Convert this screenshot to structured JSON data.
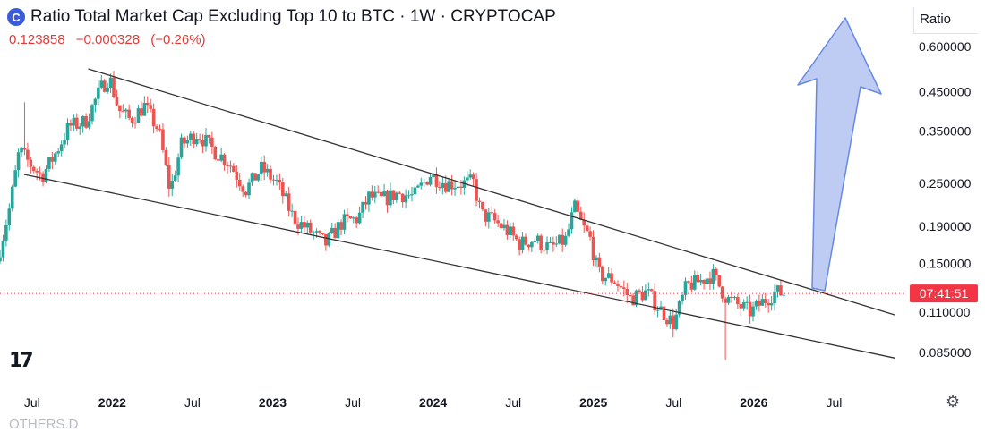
{
  "header": {
    "logo_text": "C",
    "title": "Ratio Total Market Cap Excluding Top 10 to BTC · 1W · CRYPTOCAP",
    "last_value": "0.123858",
    "change": "−0.000328",
    "change_pct": "(−0.26%)"
  },
  "scale_label": "Ratio",
  "footer_text": "OTHERS.D",
  "colors": {
    "up": "#26a69a",
    "down": "#ef5350",
    "arrow_fill": "#b9c8f3",
    "arrow_stroke": "#5b7fe0",
    "price_tag": "#f23645",
    "trendline": "#333333"
  },
  "chart_data": {
    "type": "candlestick",
    "title": "Ratio Total Market Cap Excluding Top 10 to BTC · 1W · CRYPTOCAP",
    "y_scale": "log",
    "ylim": [
      0.07,
      0.72
    ],
    "y_ticks": [
      {
        "value": 0.6,
        "label": "0.600000"
      },
      {
        "value": 0.45,
        "label": "0.450000"
      },
      {
        "value": 0.35,
        "label": "0.350000"
      },
      {
        "value": 0.25,
        "label": "0.250000"
      },
      {
        "value": 0.19,
        "label": "0.190000"
      },
      {
        "value": 0.15,
        "label": "0.150000"
      },
      {
        "value": 0.11,
        "label": "0.110000"
      },
      {
        "value": 0.085,
        "label": "0.085000"
      }
    ],
    "x_range": [
      2021.3,
      2026.95
    ],
    "x_ticks": [
      {
        "t": 2021.5,
        "label": "Jul",
        "bold": false
      },
      {
        "t": 2022.0,
        "label": "2022",
        "bold": true
      },
      {
        "t": 2022.5,
        "label": "Jul",
        "bold": false
      },
      {
        "t": 2023.0,
        "label": "2023",
        "bold": true
      },
      {
        "t": 2023.5,
        "label": "Jul",
        "bold": false
      },
      {
        "t": 2024.0,
        "label": "2024",
        "bold": true
      },
      {
        "t": 2024.5,
        "label": "Jul",
        "bold": false
      },
      {
        "t": 2025.0,
        "label": "2025",
        "bold": true
      },
      {
        "t": 2025.5,
        "label": "Jul",
        "bold": false
      },
      {
        "t": 2026.0,
        "label": "2026",
        "bold": true
      },
      {
        "t": 2026.5,
        "label": "Jul",
        "bold": false
      }
    ],
    "path_anchors": [
      [
        2021.3,
        0.152
      ],
      [
        2021.38,
        0.215
      ],
      [
        2021.44,
        0.31
      ],
      [
        2021.5,
        0.285
      ],
      [
        2021.58,
        0.262
      ],
      [
        2021.66,
        0.3
      ],
      [
        2021.75,
        0.36
      ],
      [
        2021.85,
        0.37
      ],
      [
        2021.95,
        0.46
      ],
      [
        2022.0,
        0.495
      ],
      [
        2022.06,
        0.4
      ],
      [
        2022.13,
        0.375
      ],
      [
        2022.22,
        0.41
      ],
      [
        2022.31,
        0.35
      ],
      [
        2022.38,
        0.238
      ],
      [
        2022.45,
        0.32
      ],
      [
        2022.55,
        0.345
      ],
      [
        2022.65,
        0.31
      ],
      [
        2022.75,
        0.285
      ],
      [
        2022.85,
        0.24
      ],
      [
        2022.95,
        0.275
      ],
      [
        2023.05,
        0.25
      ],
      [
        2023.15,
        0.2
      ],
      [
        2023.25,
        0.185
      ],
      [
        2023.35,
        0.17
      ],
      [
        2023.45,
        0.195
      ],
      [
        2023.55,
        0.2
      ],
      [
        2023.62,
        0.23
      ],
      [
        2023.7,
        0.225
      ],
      [
        2023.8,
        0.235
      ],
      [
        2023.9,
        0.23
      ],
      [
        2024.0,
        0.265
      ],
      [
        2024.1,
        0.25
      ],
      [
        2024.2,
        0.25
      ],
      [
        2024.27,
        0.252
      ],
      [
        2024.32,
        0.205
      ],
      [
        2024.38,
        0.2
      ],
      [
        2024.48,
        0.185
      ],
      [
        2024.56,
        0.17
      ],
      [
        2024.65,
        0.175
      ],
      [
        2024.75,
        0.165
      ],
      [
        2024.85,
        0.175
      ],
      [
        2024.9,
        0.215
      ],
      [
        2024.95,
        0.19
      ],
      [
        2025.0,
        0.175
      ],
      [
        2025.05,
        0.14
      ],
      [
        2025.15,
        0.135
      ],
      [
        2025.25,
        0.12
      ],
      [
        2025.35,
        0.125
      ],
      [
        2025.45,
        0.11
      ],
      [
        2025.52,
        0.102
      ],
      [
        2025.6,
        0.13
      ],
      [
        2025.7,
        0.135
      ],
      [
        2025.76,
        0.14
      ],
      [
        2025.85,
        0.12
      ],
      [
        2025.92,
        0.115
      ],
      [
        2026.0,
        0.11
      ],
      [
        2026.05,
        0.115
      ],
      [
        2026.1,
        0.12
      ],
      [
        2026.15,
        0.125
      ],
      [
        2026.2,
        0.124
      ]
    ],
    "spikes": [
      {
        "t": 2021.46,
        "high": 0.42
      },
      {
        "t": 2024.9,
        "high": 0.228
      },
      {
        "t": 2025.82,
        "low": 0.081
      }
    ],
    "trendlines": [
      {
        "name": "upper",
        "from": [
          2021.85,
          0.52
        ],
        "to": [
          2026.88,
          0.108
        ]
      },
      {
        "name": "lower",
        "from": [
          2021.45,
          0.265
        ],
        "to": [
          2026.88,
          0.082
        ]
      }
    ],
    "last_price": {
      "value": 0.123858,
      "tag": "07:41:51"
    },
    "annotation": "blue upward arrow from ~2026.15 to ~2026.62"
  }
}
